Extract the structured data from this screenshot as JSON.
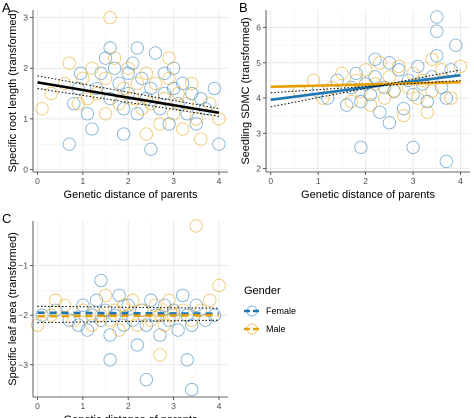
{
  "legend": {
    "title": "Gender",
    "entries": [
      {
        "label": "Female",
        "color": "#1f77b4"
      },
      {
        "label": "Male",
        "color": "#e69f00"
      }
    ]
  },
  "chart_data": [
    {
      "panel": "A",
      "type": "scatter",
      "xlabel": "Genetic distance of parents",
      "ylabel": "Specific root length (transformed)",
      "xlim": [
        -0.1,
        4.2
      ],
      "ylim": [
        -0.05,
        3.15
      ],
      "xticks": [
        0,
        1,
        2,
        3,
        4
      ],
      "yticks": [
        0,
        1,
        2,
        3
      ],
      "grid": true,
      "series": [
        {
          "name": "Female",
          "color": "#1f77b4",
          "points": [
            [
              0.7,
              0.5
            ],
            [
              0.8,
              1.3
            ],
            [
              0.9,
              1.6
            ],
            [
              0.95,
              1.9
            ],
            [
              1.1,
              1.1
            ],
            [
              1.2,
              0.8
            ],
            [
              1.3,
              1.6
            ],
            [
              1.4,
              1.9
            ],
            [
              1.5,
              2.2
            ],
            [
              1.6,
              1.4
            ],
            [
              1.7,
              2.0
            ],
            [
              1.8,
              1.7
            ],
            [
              1.9,
              1.2
            ],
            [
              2.0,
              1.9
            ],
            [
              2.0,
              1.5
            ],
            [
              2.1,
              2.1
            ],
            [
              2.2,
              1.1
            ],
            [
              2.3,
              1.8
            ],
            [
              2.4,
              1.4
            ],
            [
              2.5,
              1.6
            ],
            [
              2.6,
              2.3
            ],
            [
              2.7,
              1.2
            ],
            [
              2.8,
              1.9
            ],
            [
              2.9,
              0.9
            ],
            [
              3.0,
              1.6
            ],
            [
              3.1,
              1.3
            ],
            [
              3.2,
              1.7
            ],
            [
              3.3,
              1.1
            ],
            [
              3.4,
              1.5
            ],
            [
              3.5,
              0.9
            ],
            [
              3.6,
              1.4
            ],
            [
              3.7,
              1.2
            ],
            [
              3.9,
              1.6
            ],
            [
              4.0,
              0.5
            ],
            [
              1.9,
              0.7
            ],
            [
              2.5,
              0.4
            ],
            [
              2.2,
              2.4
            ],
            [
              1.6,
              2.4
            ],
            [
              3.0,
              2.0
            ],
            [
              2.8,
              1.5
            ]
          ]
        },
        {
          "name": "Male",
          "color": "#e69f00",
          "points": [
            [
              0.1,
              1.2
            ],
            [
              0.3,
              1.5
            ],
            [
              0.6,
              1.7
            ],
            [
              0.7,
              2.1
            ],
            [
              0.9,
              1.3
            ],
            [
              1.0,
              1.8
            ],
            [
              1.2,
              2.0
            ],
            [
              1.3,
              1.5
            ],
            [
              1.5,
              1.1
            ],
            [
              1.5,
              1.8
            ],
            [
              1.6,
              3.0
            ],
            [
              1.7,
              2.2
            ],
            [
              1.8,
              1.3
            ],
            [
              1.9,
              1.6
            ],
            [
              2.0,
              2.0
            ],
            [
              2.1,
              1.4
            ],
            [
              2.2,
              1.7
            ],
            [
              2.3,
              1.2
            ],
            [
              2.4,
              1.9
            ],
            [
              2.5,
              1.3
            ],
            [
              2.6,
              1.7
            ],
            [
              2.7,
              0.9
            ],
            [
              2.8,
              1.4
            ],
            [
              2.9,
              1.8
            ],
            [
              3.0,
              1.1
            ],
            [
              3.1,
              1.5
            ],
            [
              3.2,
              0.8
            ],
            [
              3.3,
              1.3
            ],
            [
              3.4,
              1.7
            ],
            [
              3.5,
              1.0
            ],
            [
              3.6,
              0.6
            ],
            [
              3.8,
              1.3
            ],
            [
              4.0,
              1.0
            ],
            [
              2.4,
              0.7
            ],
            [
              1.1,
              1.4
            ],
            [
              2.9,
              2.2
            ]
          ]
        }
      ],
      "fit_lines": [
        {
          "x": [
            0,
            4
          ],
          "y": [
            1.72,
            1.12
          ],
          "color": "#000000"
        },
        {
          "x": [
            0,
            4
          ],
          "y": [
            1.85,
            1.2
          ],
          "color": "#000000",
          "dotted": true
        },
        {
          "x": [
            0,
            4
          ],
          "y": [
            1.6,
            1.05
          ],
          "color": "#000000",
          "dotted": true
        }
      ]
    },
    {
      "panel": "B",
      "type": "scatter",
      "xlabel": "Genetic distance of parents",
      "ylabel": "Seedling SDMC (transformed)",
      "xlim": [
        -0.1,
        4.2
      ],
      "ylim": [
        1.9,
        6.5
      ],
      "xticks": [
        0,
        1,
        2,
        3,
        4
      ],
      "yticks": [
        2,
        3,
        4,
        5,
        6
      ],
      "grid": true,
      "series": [
        {
          "name": "Female",
          "color": "#1f77b4",
          "points": [
            [
              1.0,
              4.2
            ],
            [
              1.2,
              4.0
            ],
            [
              1.4,
              4.5
            ],
            [
              1.6,
              3.8
            ],
            [
              1.7,
              4.3
            ],
            [
              1.8,
              4.7
            ],
            [
              1.9,
              3.9
            ],
            [
              2.0,
              4.4
            ],
            [
              2.1,
              4.1
            ],
            [
              2.2,
              4.6
            ],
            [
              2.3,
              3.6
            ],
            [
              2.4,
              4.3
            ],
            [
              2.5,
              5.0
            ],
            [
              2.6,
              4.2
            ],
            [
              2.7,
              4.8
            ],
            [
              2.8,
              3.7
            ],
            [
              2.9,
              4.5
            ],
            [
              3.0,
              4.1
            ],
            [
              3.1,
              4.9
            ],
            [
              3.2,
              4.4
            ],
            [
              3.3,
              3.9
            ],
            [
              3.4,
              4.6
            ],
            [
              3.5,
              5.2
            ],
            [
              3.6,
              4.3
            ],
            [
              3.7,
              4.0
            ],
            [
              3.8,
              4.8
            ],
            [
              3.9,
              5.5
            ],
            [
              1.9,
              2.6
            ],
            [
              3.0,
              2.6
            ],
            [
              3.5,
              5.9
            ],
            [
              3.5,
              6.3
            ],
            [
              3.7,
              2.2
            ],
            [
              2.2,
              5.1
            ],
            [
              2.5,
              3.3
            ]
          ]
        },
        {
          "name": "Male",
          "color": "#e69f00",
          "points": [
            [
              0.6,
              4.2
            ],
            [
              0.9,
              4.5
            ],
            [
              1.1,
              4.0
            ],
            [
              1.3,
              4.3
            ],
            [
              1.5,
              4.7
            ],
            [
              1.7,
              3.9
            ],
            [
              1.8,
              4.5
            ],
            [
              1.9,
              4.2
            ],
            [
              2.0,
              4.8
            ],
            [
              2.1,
              3.8
            ],
            [
              2.2,
              4.4
            ],
            [
              2.4,
              4.0
            ],
            [
              2.5,
              4.6
            ],
            [
              2.6,
              4.2
            ],
            [
              2.7,
              4.9
            ],
            [
              2.8,
              3.5
            ],
            [
              2.9,
              4.3
            ],
            [
              3.0,
              4.7
            ],
            [
              3.1,
              4.0
            ],
            [
              3.2,
              4.5
            ],
            [
              3.3,
              3.6
            ],
            [
              3.4,
              4.2
            ],
            [
              3.6,
              4.8
            ],
            [
              3.8,
              4.0
            ],
            [
              4.0,
              4.9
            ],
            [
              3.4,
              5.1
            ],
            [
              2.3,
              5.0
            ]
          ]
        }
      ],
      "fit_lines": [
        {
          "x": [
            0,
            4
          ],
          "y": [
            3.95,
            4.65
          ],
          "color": "#1f77b4"
        },
        {
          "x": [
            0,
            4
          ],
          "y": [
            4.32,
            4.45
          ],
          "color": "#e69f00"
        },
        {
          "x": [
            0,
            4
          ],
          "y": [
            3.75,
            4.8
          ],
          "color": "#000000",
          "dotted": true
        },
        {
          "x": [
            0,
            4
          ],
          "y": [
            4.15,
            4.5
          ],
          "color": "#000000",
          "dotted": true
        }
      ]
    },
    {
      "panel": "C",
      "type": "scatter",
      "xlabel": "Genetic distance of parents",
      "ylabel": "Specific leaf area (transformed)",
      "xlim": [
        -0.1,
        4.2
      ],
      "ylim": [
        -3.65,
        -0.1
      ],
      "xticks": [
        0,
        1,
        2,
        3,
        4
      ],
      "yticks": [
        -3,
        -2,
        -1
      ],
      "grid": true,
      "series": [
        {
          "name": "Female",
          "color": "#1f77b4",
          "points": [
            [
              0.1,
              -2.0
            ],
            [
              0.4,
              -1.9
            ],
            [
              0.7,
              -2.1
            ],
            [
              0.9,
              -2.2
            ],
            [
              1.0,
              -1.8
            ],
            [
              1.1,
              -2.3
            ],
            [
              1.2,
              -2.0
            ],
            [
              1.3,
              -1.7
            ],
            [
              1.4,
              -2.1
            ],
            [
              1.5,
              -1.9
            ],
            [
              1.6,
              -2.4
            ],
            [
              1.7,
              -2.0
            ],
            [
              1.8,
              -1.6
            ],
            [
              1.9,
              -2.2
            ],
            [
              2.0,
              -1.8
            ],
            [
              2.1,
              -2.1
            ],
            [
              2.2,
              -2.6
            ],
            [
              2.3,
              -1.9
            ],
            [
              2.4,
              -2.2
            ],
            [
              2.5,
              -1.7
            ],
            [
              2.6,
              -2.0
            ],
            [
              2.7,
              -2.4
            ],
            [
              2.8,
              -1.8
            ],
            [
              2.9,
              -2.1
            ],
            [
              3.0,
              -1.9
            ],
            [
              3.1,
              -2.3
            ],
            [
              3.2,
              -1.6
            ],
            [
              3.3,
              -2.0
            ],
            [
              3.4,
              -2.2
            ],
            [
              3.5,
              -1.8
            ],
            [
              3.7,
              -2.1
            ],
            [
              3.9,
              -2.0
            ],
            [
              1.4,
              -1.3
            ],
            [
              2.4,
              -3.3
            ],
            [
              3.4,
              -3.5
            ],
            [
              1.6,
              -2.9
            ],
            [
              3.3,
              -2.9
            ]
          ]
        },
        {
          "name": "Male",
          "color": "#e69f00",
          "points": [
            [
              0.0,
              -2.2
            ],
            [
              0.3,
              -2.0
            ],
            [
              0.6,
              -1.8
            ],
            [
              0.8,
              -2.1
            ],
            [
              1.0,
              -1.9
            ],
            [
              1.2,
              -2.2
            ],
            [
              1.4,
              -2.0
            ],
            [
              1.5,
              -1.6
            ],
            [
              1.6,
              -2.1
            ],
            [
              1.7,
              -1.9
            ],
            [
              1.8,
              -2.3
            ],
            [
              1.9,
              -1.8
            ],
            [
              2.0,
              -2.0
            ],
            [
              2.1,
              -1.7
            ],
            [
              2.2,
              -2.2
            ],
            [
              2.3,
              -1.9
            ],
            [
              2.5,
              -2.1
            ],
            [
              2.6,
              -1.8
            ],
            [
              2.7,
              -2.0
            ],
            [
              2.8,
              -2.2
            ],
            [
              2.9,
              -1.7
            ],
            [
              3.0,
              -2.0
            ],
            [
              3.2,
              -1.9
            ],
            [
              3.4,
              -2.1
            ],
            [
              3.6,
              -1.9
            ],
            [
              3.8,
              -1.7
            ],
            [
              4.0,
              -1.4
            ],
            [
              3.5,
              -0.2
            ],
            [
              0.4,
              -1.7
            ],
            [
              2.7,
              -2.8
            ]
          ]
        }
      ],
      "fit_lines": [
        {
          "x": [
            0,
            4
          ],
          "y": [
            -1.95,
            -1.97
          ],
          "color": "#1f77b4",
          "dashed": true
        },
        {
          "x": [
            0,
            4
          ],
          "y": [
            -2.02,
            -2.0
          ],
          "color": "#e69f00",
          "dashed": true
        },
        {
          "x": [
            0,
            4
          ],
          "y": [
            -1.82,
            -1.86
          ],
          "color": "#000000",
          "dotted": true
        },
        {
          "x": [
            0,
            4
          ],
          "y": [
            -2.15,
            -2.1
          ],
          "color": "#000000",
          "dotted": true
        }
      ]
    }
  ]
}
